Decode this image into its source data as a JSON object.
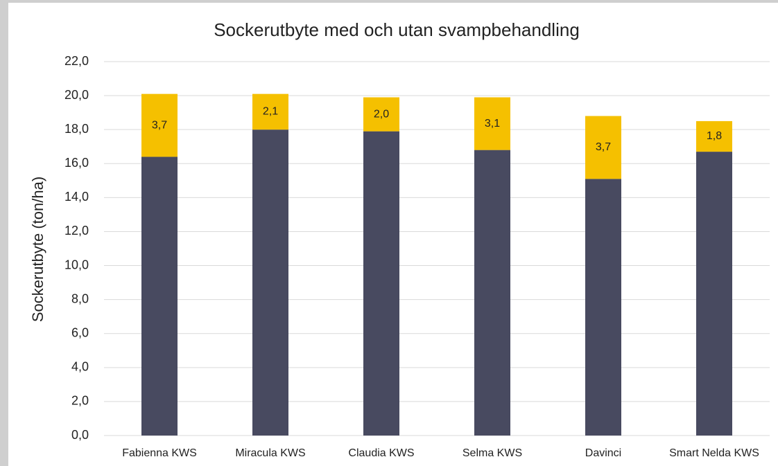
{
  "chart_data": {
    "type": "stacked_bar",
    "title": "Sockerutbyte med och utan svampbehandling",
    "y_label": "Sockerutbyte (ton/ha)",
    "categories": [
      "Fabienna KWS",
      "Miracula KWS",
      "Claudia KWS",
      "Selma KWS",
      "Davinci",
      "Smart Nelda KWS"
    ],
    "series": [
      {
        "color": "#484a60",
        "values": [
          16.4,
          18.0,
          17.9,
          16.8,
          15.1,
          16.7
        ]
      },
      {
        "color": "#f5c000",
        "values": [
          3.7,
          2.1,
          2.0,
          3.1,
          3.7,
          1.8
        ],
        "value_labels": [
          "3,7",
          "2,1",
          "2,0",
          "3,1",
          "3,7",
          "1,8"
        ]
      }
    ],
    "ylim": [
      0,
      22
    ],
    "yticks": [
      {
        "value": 0,
        "label": "0,0"
      },
      {
        "value": 2,
        "label": "2,0"
      },
      {
        "value": 4,
        "label": "4,0"
      },
      {
        "value": 6,
        "label": "6,0"
      },
      {
        "value": 8,
        "label": "8,0"
      },
      {
        "value": 10,
        "label": "10,0"
      },
      {
        "value": 12,
        "label": "12,0"
      },
      {
        "value": 14,
        "label": "14,0"
      },
      {
        "value": 16,
        "label": "16,0"
      },
      {
        "value": 18,
        "label": "18,0"
      },
      {
        "value": 20,
        "label": "20,0"
      },
      {
        "value": 22,
        "label": "22,0"
      }
    ],
    "grid": true
  }
}
